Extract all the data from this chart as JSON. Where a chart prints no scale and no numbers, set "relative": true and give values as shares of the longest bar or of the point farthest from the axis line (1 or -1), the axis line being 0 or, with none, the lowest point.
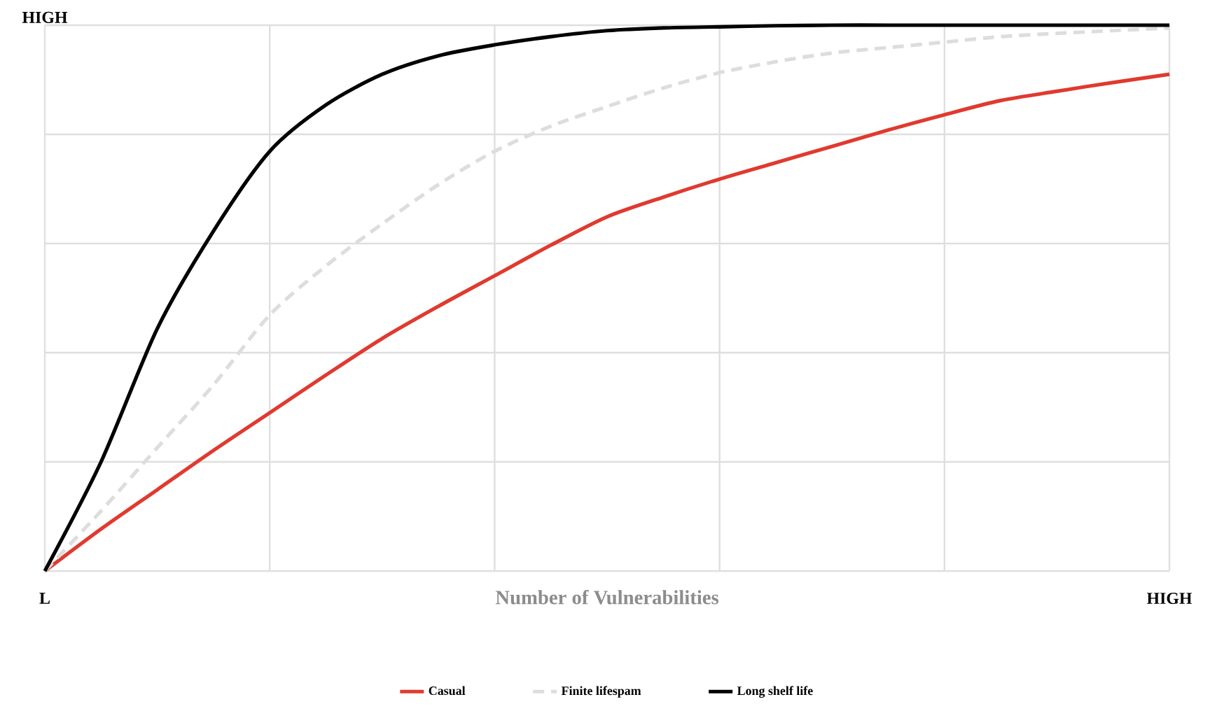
{
  "chart_data": {
    "type": "line",
    "relative": true,
    "xlabel": "Number of Vulnerabilities",
    "grid": true,
    "legend": "bottom",
    "marker": "none",
    "categories": [
      null,
      null,
      null,
      null,
      null,
      null,
      null,
      null,
      null,
      null,
      null,
      null,
      null,
      null,
      null,
      null,
      null,
      null,
      null,
      null,
      null
    ],
    "annotations": [
      "L",
      "HIGH",
      "HIGH"
    ],
    "series": [
      {
        "name": "Casual",
        "color": "#e03a2f",
        "line_style": "solid",
        "values": [
          0,
          0.077,
          0.149,
          0.221,
          0.29,
          0.359,
          0.426,
          0.485,
          0.541,
          0.597,
          0.649,
          0.685,
          0.718,
          0.748,
          0.778,
          0.808,
          0.836,
          0.862,
          0.879,
          0.895,
          0.91
        ]
      },
      {
        "name": "Finite lifespam",
        "color": "#dddddd",
        "line_style": "dashed",
        "values": [
          0,
          0.11,
          0.226,
          0.341,
          0.469,
          0.559,
          0.636,
          0.708,
          0.769,
          0.815,
          0.851,
          0.885,
          0.913,
          0.933,
          0.949,
          0.959,
          0.969,
          0.979,
          0.985,
          0.99,
          0.995
        ]
      },
      {
        "name": "Long shelf life",
        "color": "#000000",
        "line_style": "solid",
        "values": [
          0,
          0.2,
          0.444,
          0.623,
          0.769,
          0.854,
          0.91,
          0.944,
          0.964,
          0.979,
          0.99,
          0.995,
          0.997,
          0.999,
          1,
          1,
          1,
          1,
          1,
          1,
          1
        ]
      }
    ]
  }
}
